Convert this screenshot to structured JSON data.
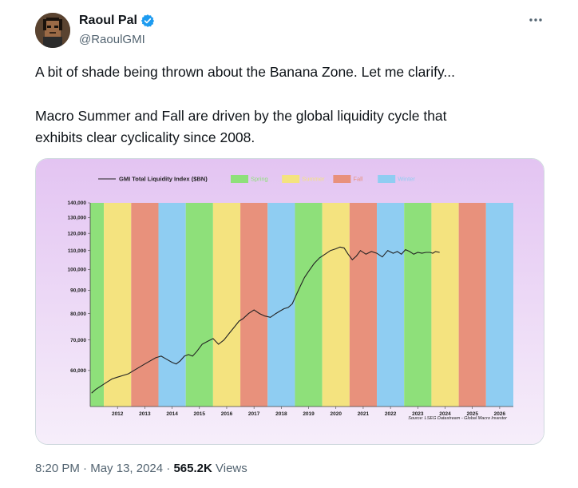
{
  "author": {
    "display_name": "Raoul Pal",
    "handle": "@RaoulGMI",
    "avatar": "pixel-art-avatar",
    "verified_icon": "verified-badge-icon",
    "verified_color": "#1d9bf0"
  },
  "more_icon": "more-dots-icon",
  "text": {
    "line1": "A bit of shade being thrown about the Banana Zone. Let me clarify...",
    "line2": "Macro Summer and Fall are driven by the global liquidity cycle that",
    "line3": "exhibits clear cyclicality since 2008."
  },
  "meta": {
    "time": "8:20 PM",
    "sep1": "·",
    "date": "May 13, 2024",
    "sep2": "·",
    "views_count": "565.2K",
    "views_label": "Views"
  },
  "chart_data": {
    "type": "line",
    "title": "",
    "legend": {
      "placement": "top",
      "entries": [
        {
          "label": "GMI Total Liquidity Index ($BN)",
          "kind": "line",
          "color": "#222222"
        },
        {
          "label": "Spring",
          "kind": "swatch",
          "color": "#8ee07a"
        },
        {
          "label": "Summer",
          "kind": "swatch",
          "color": "#f4e37f"
        },
        {
          "label": "Fall",
          "kind": "swatch",
          "color": "#e8917c"
        },
        {
          "label": "Winter",
          "kind": "swatch",
          "color": "#8fcdf2"
        }
      ]
    },
    "season_colors": {
      "spring": "#8ee07a",
      "summer": "#f4e37f",
      "fall": "#e8917c",
      "winter": "#8fcdf2"
    },
    "bands": [
      {
        "start": 2011.0,
        "end": 2011.5,
        "season": "spring"
      },
      {
        "start": 2011.5,
        "end": 2012.5,
        "season": "summer"
      },
      {
        "start": 2012.5,
        "end": 2013.5,
        "season": "fall"
      },
      {
        "start": 2013.5,
        "end": 2014.5,
        "season": "winter"
      },
      {
        "start": 2014.5,
        "end": 2015.5,
        "season": "spring"
      },
      {
        "start": 2015.5,
        "end": 2016.5,
        "season": "summer"
      },
      {
        "start": 2016.5,
        "end": 2017.5,
        "season": "fall"
      },
      {
        "start": 2017.5,
        "end": 2018.5,
        "season": "winter"
      },
      {
        "start": 2018.5,
        "end": 2019.5,
        "season": "spring"
      },
      {
        "start": 2019.5,
        "end": 2020.5,
        "season": "summer"
      },
      {
        "start": 2020.5,
        "end": 2021.5,
        "season": "fall"
      },
      {
        "start": 2021.5,
        "end": 2022.5,
        "season": "winter"
      },
      {
        "start": 2022.5,
        "end": 2023.5,
        "season": "spring"
      },
      {
        "start": 2023.5,
        "end": 2024.5,
        "season": "summer"
      },
      {
        "start": 2024.5,
        "end": 2025.5,
        "season": "fall"
      },
      {
        "start": 2025.5,
        "end": 2026.5,
        "season": "winter"
      }
    ],
    "xlim": [
      2011.0,
      2026.5
    ],
    "ylim": [
      50000,
      140000
    ],
    "y_scale": "log",
    "x_ticks": [
      "2012",
      "2013",
      "2014",
      "2015",
      "2016",
      "2017",
      "2018",
      "2019",
      "2020",
      "2021",
      "2022",
      "2023",
      "2024",
      "2025",
      "2026"
    ],
    "y_ticks": [
      {
        "value": 60000,
        "label": "60,000"
      },
      {
        "value": 70000,
        "label": "70,000"
      },
      {
        "value": 80000,
        "label": "80,000"
      },
      {
        "value": 90000,
        "label": "90,000"
      },
      {
        "value": 100000,
        "label": "100,000"
      },
      {
        "value": 110000,
        "label": "110,000"
      },
      {
        "value": 120000,
        "label": "120,000"
      },
      {
        "value": 130000,
        "label": "130,000"
      },
      {
        "value": 140000,
        "label": "140,000"
      }
    ],
    "grid": false,
    "source_note": "Source: LSEG Datastream - Global Macro Investor",
    "series": [
      {
        "name": "GMI Total Liquidity Index ($BN)",
        "color": "#222222",
        "x": [
          2011.05,
          2011.2,
          2011.4,
          2011.6,
          2011.8,
          2012.0,
          2012.2,
          2012.4,
          2012.6,
          2012.8,
          2013.0,
          2013.2,
          2013.4,
          2013.6,
          2013.8,
          2014.0,
          2014.15,
          2014.3,
          2014.45,
          2014.6,
          2014.75,
          2014.9,
          2015.1,
          2015.3,
          2015.5,
          2015.7,
          2015.9,
          2016.1,
          2016.3,
          2016.45,
          2016.6,
          2016.8,
          2017.0,
          2017.2,
          2017.4,
          2017.6,
          2017.8,
          2017.95,
          2018.1,
          2018.25,
          2018.4,
          2018.55,
          2018.7,
          2018.85,
          2019.0,
          2019.2,
          2019.4,
          2019.6,
          2019.8,
          2020.0,
          2020.15,
          2020.3,
          2020.45,
          2020.6,
          2020.75,
          2020.9,
          2021.1,
          2021.3,
          2021.5,
          2021.7,
          2021.9,
          2022.1,
          2022.25,
          2022.4,
          2022.55,
          2022.7,
          2022.85,
          2023.0,
          2023.15,
          2023.3,
          2023.45,
          2023.55,
          2023.65,
          2023.8
        ],
        "y": [
          53500,
          54500,
          55500,
          56500,
          57500,
          58000,
          58500,
          59000,
          60000,
          61000,
          62000,
          63000,
          64000,
          64500,
          63500,
          62500,
          62000,
          63000,
          64500,
          65000,
          64500,
          66000,
          68500,
          69500,
          70500,
          68500,
          70000,
          72500,
          75000,
          77000,
          78000,
          80000,
          81500,
          80000,
          79000,
          78500,
          80000,
          81000,
          82000,
          82500,
          84000,
          88000,
          92000,
          96000,
          99000,
          103000,
          106000,
          108000,
          110000,
          111000,
          112000,
          111500,
          108000,
          105000,
          107000,
          110000,
          108000,
          109500,
          108500,
          106500,
          110000,
          108500,
          109500,
          108000,
          110500,
          109500,
          108000,
          109000,
          108500,
          109000,
          109000,
          108500,
          109500,
          109000
        ]
      }
    ]
  }
}
